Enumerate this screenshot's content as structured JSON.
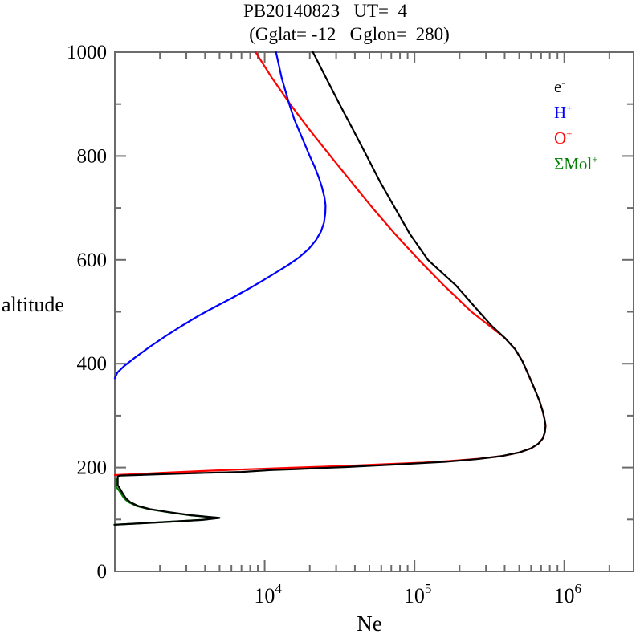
{
  "title": {
    "line1": "PB20140823   UT=  4",
    "line2": "(Gglat= -12   Gglon=  280)"
  },
  "axis_labels": {
    "x": "Ne",
    "y": "altitude"
  },
  "legend": {
    "items": [
      {
        "text": "e",
        "sup": "-",
        "color": "#000000"
      },
      {
        "text": "H",
        "sup": "+",
        "color": "#0000ff"
      },
      {
        "text": "O",
        "sup": "+",
        "color": "#ff0000"
      },
      {
        "text": "ΣMol",
        "sup": "+",
        "color": "#008000"
      }
    ]
  },
  "colors": {
    "axis": "#6b6b6b",
    "text": "#000000",
    "background": "#ffffff"
  },
  "chart_data": {
    "type": "line",
    "title": "PB20140823   UT=  4",
    "subtitle": "(Gglat= -12   Gglon=  280)",
    "xlabel": "Ne",
    "ylabel": "altitude",
    "x_scale": "log",
    "xlim": [
      1000,
      2900000
    ],
    "ylim": [
      0,
      1000
    ],
    "grid": false,
    "legend_position": "upper right inside",
    "x_major_ticks": [
      {
        "value": 10000,
        "base": "10",
        "exp": "4"
      },
      {
        "value": 100000,
        "base": "10",
        "exp": "5"
      },
      {
        "value": 1000000,
        "base": "10",
        "exp": "6"
      }
    ],
    "x_minor_ticks": [
      2000,
      3000,
      4000,
      5000,
      6000,
      7000,
      8000,
      9000,
      20000,
      30000,
      40000,
      50000,
      60000,
      70000,
      80000,
      90000,
      200000,
      300000,
      400000,
      500000,
      600000,
      700000,
      800000,
      900000,
      2000000
    ],
    "y_major_ticks": [
      200,
      400,
      600,
      800
    ],
    "y_minor_ticks": [
      100,
      300,
      500,
      700,
      900
    ],
    "y_tick_labels": [
      {
        "value": 0,
        "label": "0"
      },
      {
        "value": 200,
        "label": "200"
      },
      {
        "value": 400,
        "label": "400"
      },
      {
        "value": 600,
        "label": "600"
      },
      {
        "value": 800,
        "label": "800"
      },
      {
        "value": 1000,
        "label": "1000"
      }
    ],
    "point_format": "[Ne_cm3, altitude_km]",
    "series": [
      {
        "name": "SigmaMol+",
        "color": "#008000",
        "points": [
          [
            1020,
            178
          ],
          [
            1020,
            170
          ],
          [
            1020,
            163
          ],
          [
            1060,
            157
          ],
          [
            1100,
            150
          ],
          [
            1160,
            140
          ],
          [
            1240,
            133
          ],
          [
            1400,
            126
          ],
          [
            1690,
            120
          ],
          [
            2260,
            114
          ],
          [
            3200,
            108
          ],
          [
            4950,
            103
          ],
          [
            3750,
            99
          ],
          [
            2120,
            95
          ],
          [
            1340,
            92
          ],
          [
            990,
            90
          ]
        ]
      },
      {
        "name": "O+",
        "color": "#ff0000",
        "points": [
          [
            8700,
            1000
          ],
          [
            11200,
            950
          ],
          [
            14800,
            900
          ],
          [
            20000,
            850
          ],
          [
            27500,
            800
          ],
          [
            38000,
            750
          ],
          [
            52500,
            700
          ],
          [
            74000,
            650
          ],
          [
            107000,
            600
          ],
          [
            158000,
            550
          ],
          [
            240000,
            500
          ],
          [
            320000,
            472
          ],
          [
            400000,
            450
          ],
          [
            470000,
            428
          ],
          [
            525000,
            405
          ],
          [
            590000,
            372
          ],
          [
            640000,
            348
          ],
          [
            685000,
            327
          ],
          [
            718000,
            308
          ],
          [
            737000,
            294
          ],
          [
            750000,
            281
          ],
          [
            742000,
            268
          ],
          [
            718000,
            256
          ],
          [
            672000,
            246
          ],
          [
            600000,
            237
          ],
          [
            500000,
            229
          ],
          [
            380000,
            222
          ],
          [
            270000,
            217
          ],
          [
            180000,
            213
          ],
          [
            115000,
            209.5
          ],
          [
            70000,
            207
          ],
          [
            41000,
            204
          ],
          [
            24000,
            201.5
          ],
          [
            15000,
            199.5
          ],
          [
            9500,
            197.5
          ],
          [
            6000,
            195.5
          ],
          [
            3800,
            193.2
          ],
          [
            2100,
            190
          ],
          [
            1550,
            188
          ],
          [
            1200,
            186.5
          ],
          [
            1000,
            185.5
          ]
        ]
      },
      {
        "name": "H+",
        "color": "#0000ff",
        "points": [
          [
            11900,
            1000
          ],
          [
            13000,
            950
          ],
          [
            14600,
            900
          ],
          [
            15800,
            870
          ],
          [
            16900,
            850
          ],
          [
            18700,
            820
          ],
          [
            20000,
            800
          ],
          [
            21500,
            780
          ],
          [
            22900,
            760
          ],
          [
            24100,
            740
          ],
          [
            25100,
            720
          ],
          [
            25500,
            705
          ],
          [
            25400,
            690
          ],
          [
            24900,
            672
          ],
          [
            23800,
            655
          ],
          [
            22000,
            638
          ],
          [
            19800,
            622
          ],
          [
            17000,
            605
          ],
          [
            14300,
            590
          ],
          [
            11800,
            575
          ],
          [
            9700,
            560
          ],
          [
            7900,
            545
          ],
          [
            6100,
            527
          ],
          [
            4700,
            510
          ],
          [
            3600,
            492
          ],
          [
            2800,
            473
          ],
          [
            2150,
            452
          ],
          [
            1700,
            432
          ],
          [
            1350,
            411
          ],
          [
            1150,
            395
          ],
          [
            1040,
            383
          ],
          [
            1000,
            372
          ]
        ]
      },
      {
        "name": "e-",
        "color": "#000000",
        "points": [
          [
            21000,
            1000
          ],
          [
            25700,
            950
          ],
          [
            31600,
            900
          ],
          [
            39000,
            850
          ],
          [
            48000,
            800
          ],
          [
            59000,
            750
          ],
          [
            74000,
            700
          ],
          [
            93000,
            650
          ],
          [
            123000,
            600
          ],
          [
            190000,
            550
          ],
          [
            270000,
            500
          ],
          [
            330000,
            472
          ],
          [
            400000,
            450
          ],
          [
            470000,
            428
          ],
          [
            525000,
            405
          ],
          [
            590000,
            372
          ],
          [
            640000,
            348
          ],
          [
            685000,
            327
          ],
          [
            718000,
            308
          ],
          [
            737000,
            294
          ],
          [
            750000,
            281
          ],
          [
            742000,
            268
          ],
          [
            718000,
            256
          ],
          [
            672000,
            246
          ],
          [
            600000,
            237
          ],
          [
            500000,
            229
          ],
          [
            380000,
            222
          ],
          [
            260000,
            216
          ],
          [
            160000,
            211
          ],
          [
            90000,
            207
          ],
          [
            56000,
            204
          ],
          [
            35000,
            201
          ],
          [
            24000,
            199
          ],
          [
            17000,
            197
          ],
          [
            11000,
            195
          ],
          [
            7000,
            191.5
          ],
          [
            3800,
            189.5
          ],
          [
            2000,
            187
          ],
          [
            1400,
            185.5
          ],
          [
            1090,
            184.5
          ],
          [
            1045,
            183
          ],
          [
            1045,
            176
          ],
          [
            1045,
            166
          ],
          [
            1090,
            158
          ],
          [
            1130,
            150
          ],
          [
            1190,
            140
          ],
          [
            1270,
            133
          ],
          [
            1430,
            126
          ],
          [
            1720,
            120
          ],
          [
            2300,
            114
          ],
          [
            3250,
            108
          ],
          [
            5000,
            103
          ],
          [
            3800,
            99
          ],
          [
            2150,
            95
          ],
          [
            1360,
            92
          ],
          [
            1000,
            90
          ]
        ]
      }
    ]
  }
}
